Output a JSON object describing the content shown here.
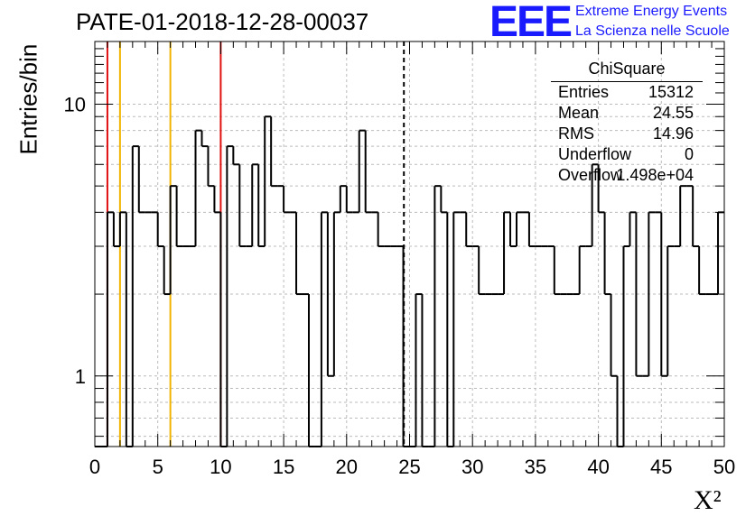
{
  "header": {
    "run_title": "PATE-01-2018-12-28-00037",
    "logo_text": "EEE",
    "logo_line1": "Extreme Energy Events",
    "logo_line2": "La Scienza nelle Scuole"
  },
  "stats_box": {
    "title": "ChiSquare",
    "rows": [
      {
        "key": "Entries",
        "value": "15312"
      },
      {
        "key": "Mean",
        "value": "24.55"
      },
      {
        "key": "RMS",
        "value": "14.96"
      },
      {
        "key": "Underflow",
        "value": "0"
      },
      {
        "key": "Overflow",
        "value": "1.498e+04"
      }
    ]
  },
  "colors": {
    "histogram": "#000000",
    "red_line": "#e01010",
    "yellow_line": "#f0b400",
    "grid": "#bbbbbb",
    "logo": "#1a1aff"
  },
  "chart_data": {
    "type": "histogram",
    "xlabel": "X²",
    "ylabel": "Entries/bin",
    "xlim": [
      0,
      50
    ],
    "ylim": [
      0.55,
      17
    ],
    "y_scale": "log",
    "grid": true,
    "x_ticks": [
      0,
      5,
      10,
      15,
      20,
      25,
      30,
      35,
      40,
      45,
      50
    ],
    "y_tick_labels": [
      {
        "value": 1,
        "label": "1"
      },
      {
        "value": 10,
        "label": "10"
      }
    ],
    "bin_width": 0.5,
    "bin_values": [
      0,
      0,
      4,
      3,
      4,
      0,
      7,
      4,
      4,
      4,
      3,
      2,
      5,
      3,
      3,
      3,
      8,
      7,
      5,
      4,
      0,
      7,
      6,
      3,
      3,
      6,
      3,
      9,
      5,
      5,
      4,
      4,
      2,
      2,
      0,
      0,
      4,
      1,
      4,
      5,
      4,
      4,
      8,
      4,
      4,
      3,
      3,
      3,
      3,
      0,
      0,
      2,
      0,
      0,
      5,
      4,
      0,
      4,
      4,
      3,
      3,
      2,
      2,
      2,
      2,
      4,
      3,
      4,
      4,
      3,
      3,
      3,
      3,
      2,
      2,
      2,
      2,
      3,
      3,
      6,
      4,
      2,
      1,
      0,
      3,
      4,
      1,
      1,
      4,
      4,
      1,
      3,
      3,
      5,
      5,
      3,
      2,
      2,
      2,
      4
    ],
    "vertical_lines": [
      {
        "x": 1,
        "color": "red",
        "style": "solid"
      },
      {
        "x": 2,
        "color": "yellow",
        "style": "solid"
      },
      {
        "x": 6,
        "color": "yellow",
        "style": "solid"
      },
      {
        "x": 10,
        "color": "red",
        "style": "solid"
      },
      {
        "x": 24.55,
        "color": "black",
        "style": "dashed"
      }
    ]
  }
}
